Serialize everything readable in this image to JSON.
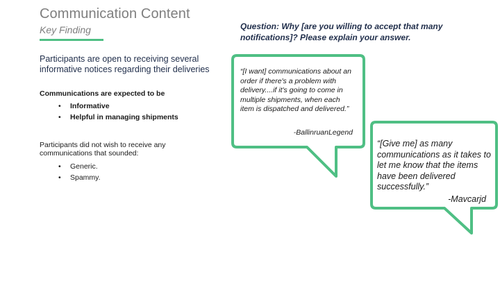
{
  "header": {
    "title": "Communication Content",
    "subtitle": "Key Finding"
  },
  "left": {
    "lead": "Participants are open to receiving several informative notices regarding their deliveries",
    "expect_heading": "Communications are expected to be",
    "expect_items": [
      "Informative",
      "Helpful in managing shipments"
    ],
    "avoid_intro": "Participants did not wish to receive any communications that sounded:",
    "avoid_items": [
      "Generic.",
      "Spammy."
    ]
  },
  "question": "Question:  Why [are you willing to accept that many notifications]? Please explain your answer.",
  "quotes": [
    {
      "text": "“[I want] communications about an order if there's a problem with delivery....if it's going to come in multiple shipments, when each item is dispatched and delivered.”",
      "author": "-BallinruanLegend"
    },
    {
      "text": "“[Give me] as many communications as it takes to let me know that the items have been delivered successfully.”",
      "author": "-Mavcarjd"
    }
  ],
  "colors": {
    "accent": "#4fbf84",
    "title_gray": "#7f7f7f",
    "navy_text": "#1f2d4a"
  }
}
